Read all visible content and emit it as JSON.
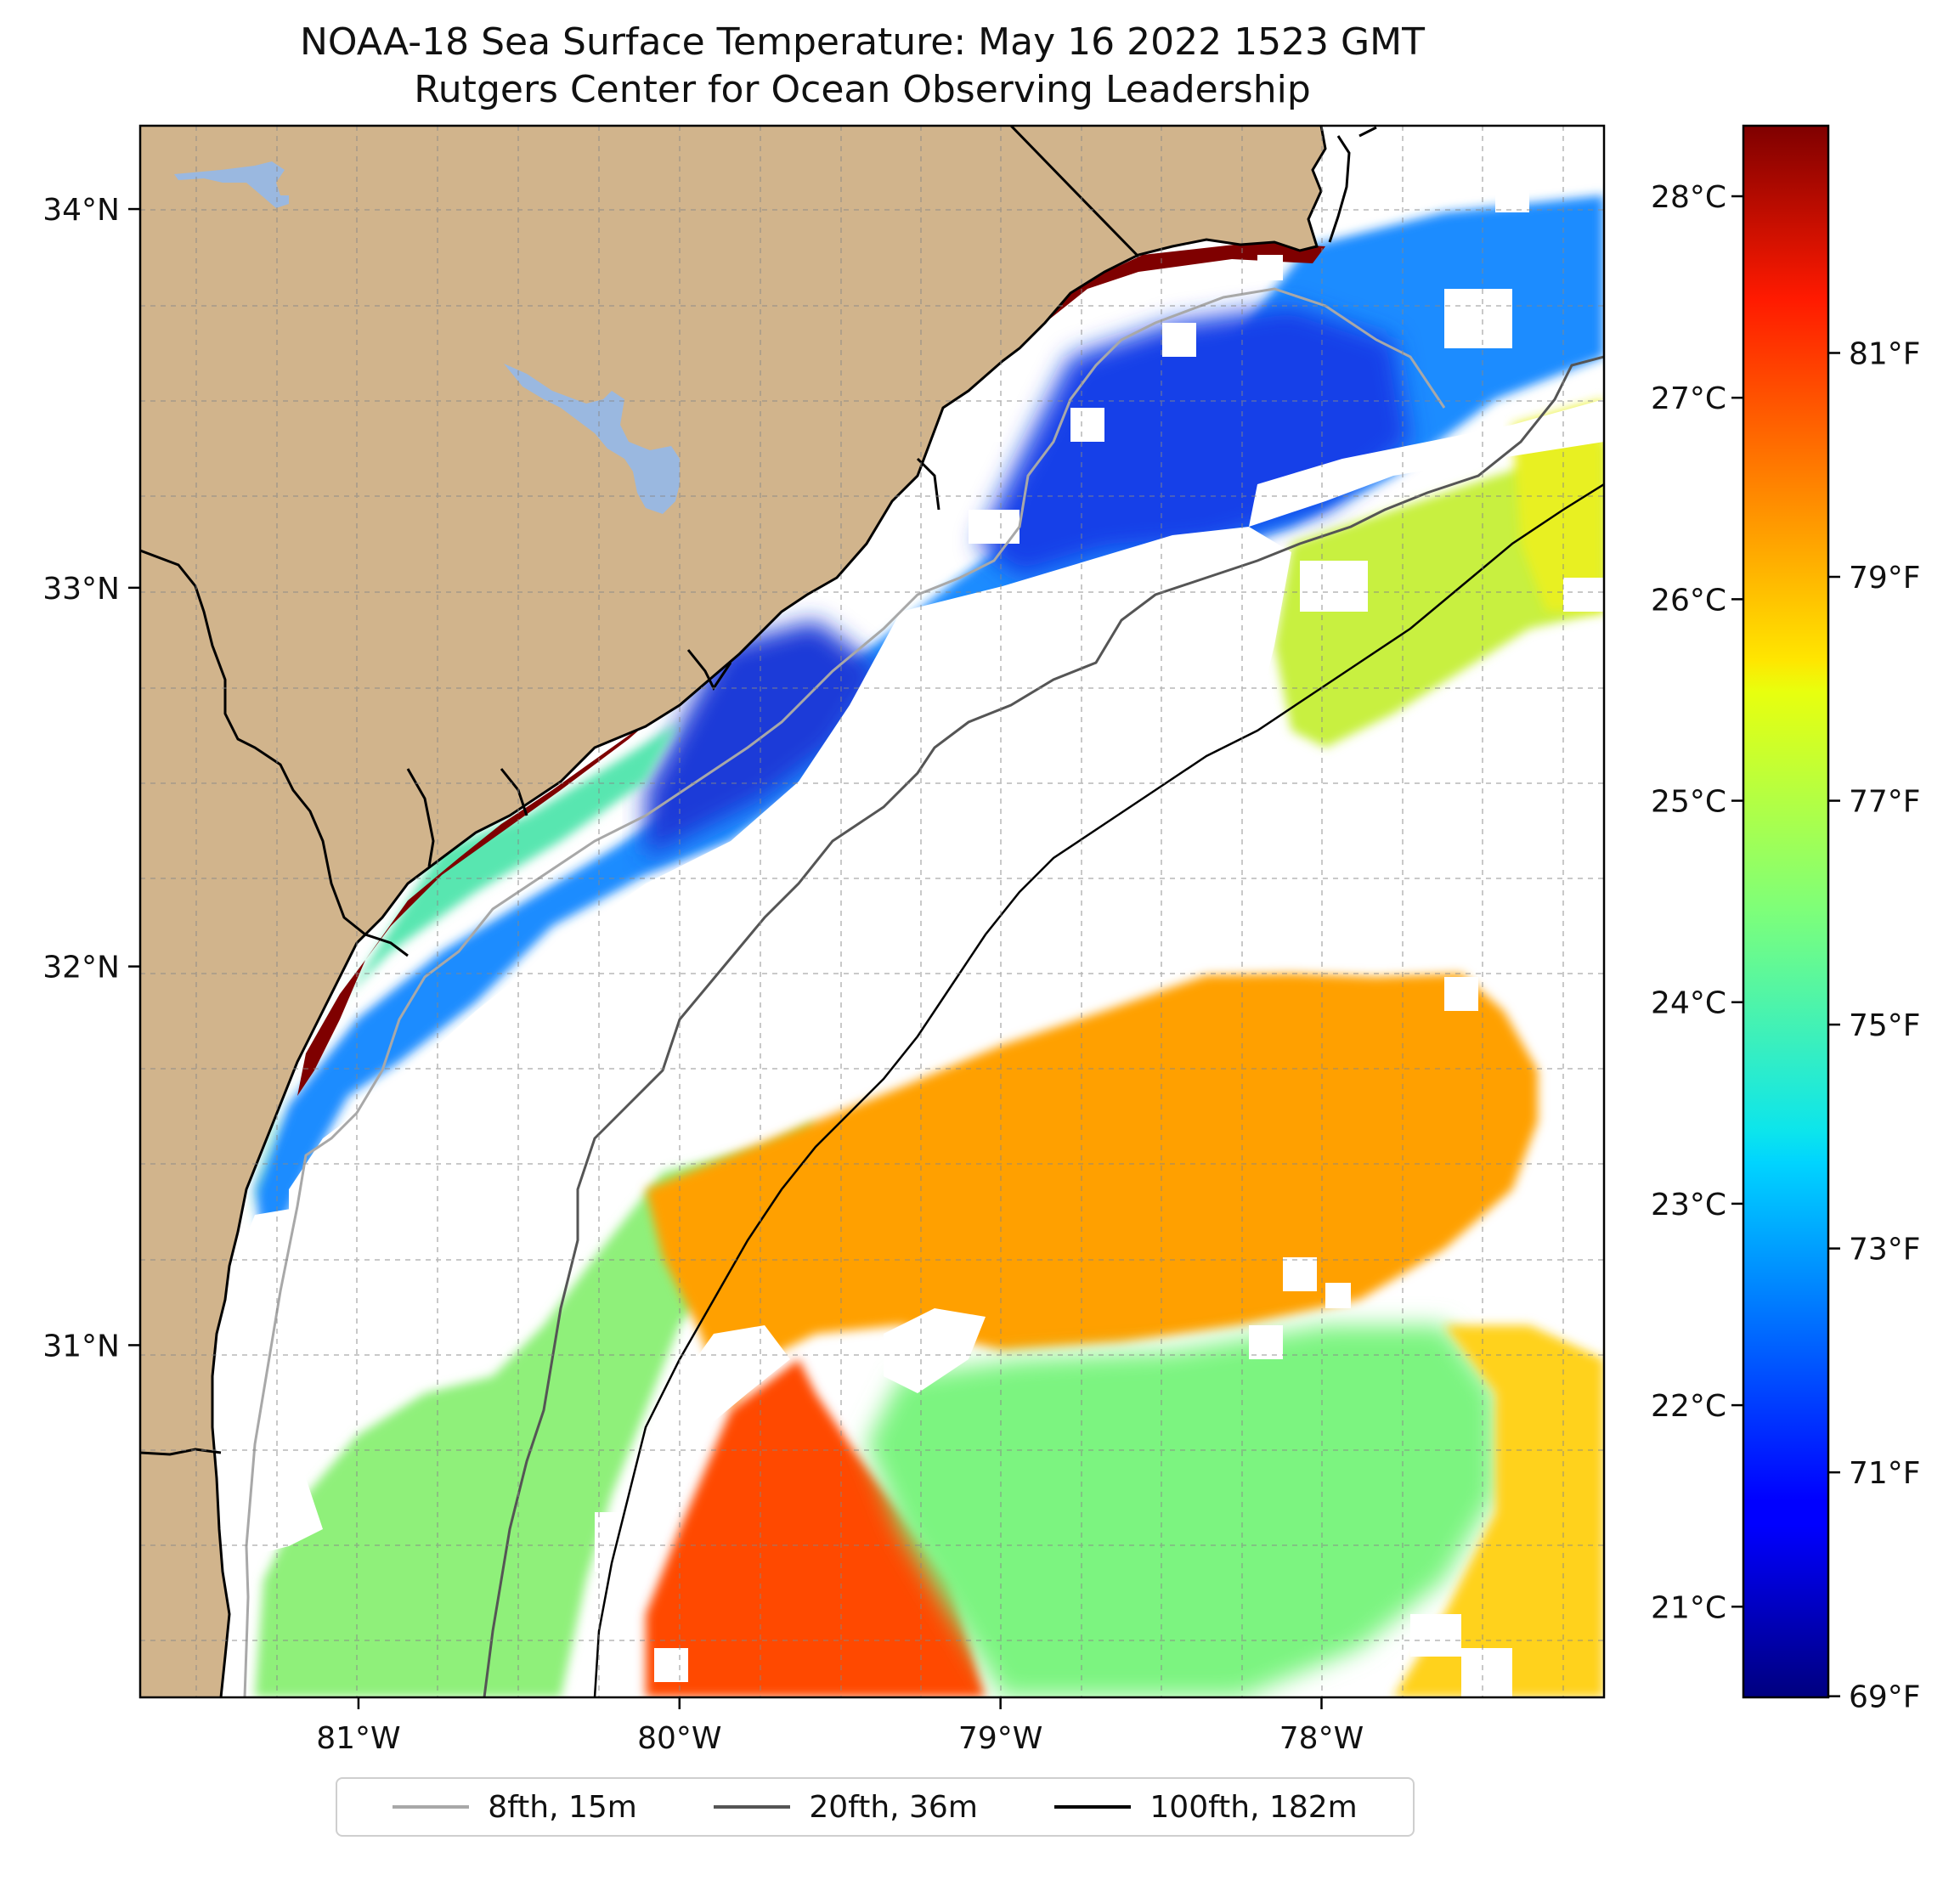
{
  "title": {
    "line1": "NOAA-18 Sea Surface Temperature: May 16 2022 1523 GMT",
    "line2": "Rutgers Center for Ocean Observing Leadership"
  },
  "map": {
    "lon_range": [
      -81.68,
      -77.12
    ],
    "lat_range": [
      30.07,
      34.22
    ],
    "lon_ticks": [
      {
        "value": -81,
        "label": "81°W"
      },
      {
        "value": -80,
        "label": "80°W"
      },
      {
        "value": -79,
        "label": "79°W"
      },
      {
        "value": -78,
        "label": "78°W"
      }
    ],
    "lat_ticks": [
      {
        "value": 34,
        "label": "34°N"
      },
      {
        "value": 33,
        "label": "33°N"
      },
      {
        "value": 32,
        "label": "32°N"
      },
      {
        "value": 31,
        "label": "31°N"
      }
    ],
    "grid": "on",
    "colors": {
      "land": "#d1b48c",
      "water_bodies": "#9ab8e0",
      "no_data": "#ffffff",
      "coastline": "#000000"
    }
  },
  "colorbar": {
    "colormap": "jet",
    "celsius_range": [
      20.55,
      28.35
    ],
    "celsius_ticks": [
      {
        "value": 28,
        "label": "28°C"
      },
      {
        "value": 27,
        "label": "27°C"
      },
      {
        "value": 26,
        "label": "26°C"
      },
      {
        "value": 25,
        "label": "25°C"
      },
      {
        "value": 24,
        "label": "24°C"
      },
      {
        "value": 23,
        "label": "23°C"
      },
      {
        "value": 22,
        "label": "22°C"
      },
      {
        "value": 21,
        "label": "21°C"
      }
    ],
    "fahrenheit_ticks": [
      {
        "value": 81,
        "label": "81°F"
      },
      {
        "value": 79,
        "label": "79°F"
      },
      {
        "value": 77,
        "label": "77°F"
      },
      {
        "value": 75,
        "label": "75°F"
      },
      {
        "value": 73,
        "label": "73°F"
      },
      {
        "value": 71,
        "label": "71°F"
      },
      {
        "value": 69,
        "label": "69°F"
      }
    ]
  },
  "legend": {
    "items": [
      {
        "label": "8fth, 15m",
        "color": "#a8a8a8"
      },
      {
        "label": "20fth, 36m",
        "color": "#555555"
      },
      {
        "label": "100fth, 182m",
        "color": "#000000"
      }
    ]
  }
}
